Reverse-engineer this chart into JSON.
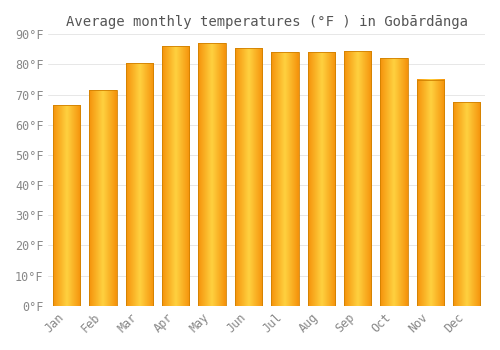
{
  "title": "Average monthly temperatures (°F ) in Gobārdānga",
  "months": [
    "Jan",
    "Feb",
    "Mar",
    "Apr",
    "May",
    "Jun",
    "Jul",
    "Aug",
    "Sep",
    "Oct",
    "Nov",
    "Dec"
  ],
  "values": [
    66.5,
    71.5,
    80.5,
    86,
    87,
    85.5,
    84,
    84,
    84.5,
    82,
    75,
    67.5
  ],
  "bar_color_center": "#FFD050",
  "bar_color_edge": "#F5920A",
  "background_color": "#FFFFFF",
  "grid_color": "#DDDDDD",
  "ylim": [
    0,
    90
  ],
  "yticks": [
    0,
    10,
    20,
    30,
    40,
    50,
    60,
    70,
    80,
    90
  ],
  "ytick_labels": [
    "0°F",
    "10°F",
    "20°F",
    "30°F",
    "40°F",
    "50°F",
    "60°F",
    "70°F",
    "80°F",
    "90°F"
  ],
  "title_fontsize": 10,
  "tick_fontsize": 8.5,
  "bar_width": 0.75
}
